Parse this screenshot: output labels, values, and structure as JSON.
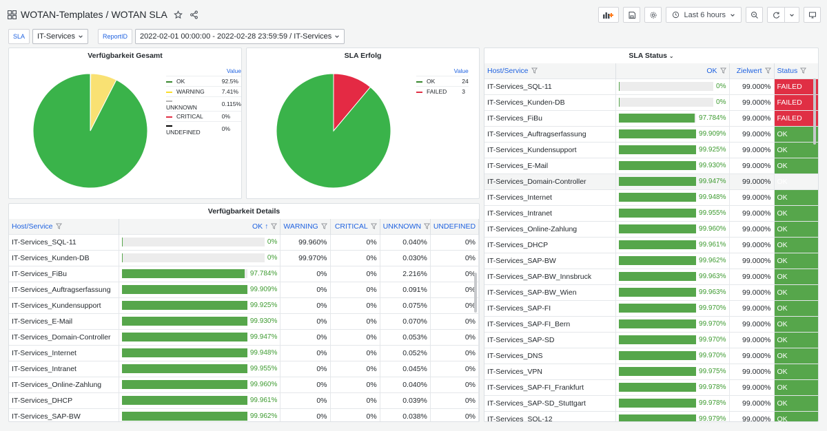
{
  "header": {
    "folder": "WOTAN-Templates",
    "separator": "/",
    "dashboard": "WOTAN SLA",
    "time_range": "Last 6 hours"
  },
  "variables": [
    {
      "label": "SLA",
      "value": "IT-Services"
    },
    {
      "label": "ReportID",
      "value": "2022-02-01 00:00:00 - 2022-02-28 23:59:59 / IT-Services"
    }
  ],
  "panels": {
    "availability_total": {
      "title": "Verfügbarkeit Gesamt",
      "legend_header": "Value",
      "legend": [
        {
          "name": "OK",
          "value": "92.5%",
          "color": "#37872d"
        },
        {
          "name": "WARNING",
          "value": "7.41%",
          "color": "#fade2a"
        },
        {
          "name": "UNKNOWN",
          "value": "0.115%",
          "color": "#b4b4b4"
        },
        {
          "name": "CRITICAL",
          "value": "0%",
          "color": "#e02f44"
        },
        {
          "name": "UNDEFINED",
          "value": "0%",
          "color": "#000000"
        }
      ]
    },
    "sla_success": {
      "title": "SLA Erfolg",
      "legend_header": "Value",
      "legend": [
        {
          "name": "OK",
          "value": "24",
          "color": "#37872d"
        },
        {
          "name": "FAILED",
          "value": "3",
          "color": "#e02f44"
        }
      ]
    },
    "sla_status": {
      "title": "SLA Status",
      "columns": [
        "Host/Service",
        "OK",
        "Zielwert",
        "Status"
      ],
      "rows": [
        {
          "host": "IT-Services_SQL-11",
          "ok": "0%",
          "pct": 0,
          "target": "99.000%",
          "status": "FAILED"
        },
        {
          "host": "IT-Services_Kunden-DB",
          "ok": "0%",
          "pct": 0,
          "target": "99.000%",
          "status": "FAILED"
        },
        {
          "host": "IT-Services_FiBu",
          "ok": "97.784%",
          "pct": 97.784,
          "target": "99.000%",
          "status": "FAILED"
        },
        {
          "host": "IT-Services_Auftragserfassung",
          "ok": "99.909%",
          "pct": 99.909,
          "target": "99.000%",
          "status": "OK"
        },
        {
          "host": "IT-Services_Kundensupport",
          "ok": "99.925%",
          "pct": 99.925,
          "target": "99.000%",
          "status": "OK"
        },
        {
          "host": "IT-Services_E-Mail",
          "ok": "99.930%",
          "pct": 99.93,
          "target": "99.000%",
          "status": "OK"
        },
        {
          "host": "IT-Services_Domain-Controller",
          "ok": "99.947%",
          "pct": 99.947,
          "target": "99.000%",
          "status": "OK"
        },
        {
          "host": "IT-Services_Internet",
          "ok": "99.948%",
          "pct": 99.948,
          "target": "99.000%",
          "status": "OK"
        },
        {
          "host": "IT-Services_Intranet",
          "ok": "99.955%",
          "pct": 99.955,
          "target": "99.000%",
          "status": "OK"
        },
        {
          "host": "IT-Services_Online-Zahlung",
          "ok": "99.960%",
          "pct": 99.96,
          "target": "99.000%",
          "status": "OK"
        },
        {
          "host": "IT-Services_DHCP",
          "ok": "99.961%",
          "pct": 99.961,
          "target": "99.000%",
          "status": "OK"
        },
        {
          "host": "IT-Services_SAP-BW",
          "ok": "99.962%",
          "pct": 99.962,
          "target": "99.000%",
          "status": "OK"
        },
        {
          "host": "IT-Services_SAP-BW_Innsbruck",
          "ok": "99.963%",
          "pct": 99.963,
          "target": "99.000%",
          "status": "OK"
        },
        {
          "host": "IT-Services_SAP-BW_Wien",
          "ok": "99.963%",
          "pct": 99.963,
          "target": "99.000%",
          "status": "OK"
        },
        {
          "host": "IT-Services_SAP-FI",
          "ok": "99.970%",
          "pct": 99.97,
          "target": "99.000%",
          "status": "OK"
        },
        {
          "host": "IT-Services_SAP-FI_Bern",
          "ok": "99.970%",
          "pct": 99.97,
          "target": "99.000%",
          "status": "OK"
        },
        {
          "host": "IT-Services_SAP-SD",
          "ok": "99.970%",
          "pct": 99.97,
          "target": "99.000%",
          "status": "OK"
        },
        {
          "host": "IT-Services_DNS",
          "ok": "99.970%",
          "pct": 99.97,
          "target": "99.000%",
          "status": "OK"
        },
        {
          "host": "IT-Services_VPN",
          "ok": "99.975%",
          "pct": 99.975,
          "target": "99.000%",
          "status": "OK"
        },
        {
          "host": "IT-Services_SAP-FI_Frankfurt",
          "ok": "99.978%",
          "pct": 99.978,
          "target": "99.000%",
          "status": "OK"
        },
        {
          "host": "IT-Services_SAP-SD_Stuttgart",
          "ok": "99.978%",
          "pct": 99.978,
          "target": "99.000%",
          "status": "OK"
        },
        {
          "host": "IT-Services_SQL-12",
          "ok": "99.979%",
          "pct": 99.979,
          "target": "99.000%",
          "status": "OK"
        }
      ]
    },
    "availability_details": {
      "title": "Verfügbarkeit Details",
      "columns": [
        "Host/Service",
        "OK",
        "WARNING",
        "CRITICAL",
        "UNKNOWN",
        "UNDEFINED"
      ],
      "rows": [
        {
          "host": "IT-Services_SQL-11",
          "ok": "0%",
          "pct": 0,
          "warning": "99.960%",
          "critical": "0%",
          "unknown": "0.040%",
          "undefined": "0%"
        },
        {
          "host": "IT-Services_Kunden-DB",
          "ok": "0%",
          "pct": 0,
          "warning": "99.970%",
          "critical": "0%",
          "unknown": "0.030%",
          "undefined": "0%"
        },
        {
          "host": "IT-Services_FiBu",
          "ok": "97.784%",
          "pct": 97.784,
          "warning": "0%",
          "critical": "0%",
          "unknown": "2.216%",
          "undefined": "0%"
        },
        {
          "host": "IT-Services_Auftragserfassung",
          "ok": "99.909%",
          "pct": 99.909,
          "warning": "0%",
          "critical": "0%",
          "unknown": "0.091%",
          "undefined": "0%"
        },
        {
          "host": "IT-Services_Kundensupport",
          "ok": "99.925%",
          "pct": 99.925,
          "warning": "0%",
          "critical": "0%",
          "unknown": "0.075%",
          "undefined": "0%"
        },
        {
          "host": "IT-Services_E-Mail",
          "ok": "99.930%",
          "pct": 99.93,
          "warning": "0%",
          "critical": "0%",
          "unknown": "0.070%",
          "undefined": "0%"
        },
        {
          "host": "IT-Services_Domain-Controller",
          "ok": "99.947%",
          "pct": 99.947,
          "warning": "0%",
          "critical": "0%",
          "unknown": "0.053%",
          "undefined": "0%"
        },
        {
          "host": "IT-Services_Internet",
          "ok": "99.948%",
          "pct": 99.948,
          "warning": "0%",
          "critical": "0%",
          "unknown": "0.052%",
          "undefined": "0%"
        },
        {
          "host": "IT-Services_Intranet",
          "ok": "99.955%",
          "pct": 99.955,
          "warning": "0%",
          "critical": "0%",
          "unknown": "0.045%",
          "undefined": "0%"
        },
        {
          "host": "IT-Services_Online-Zahlung",
          "ok": "99.960%",
          "pct": 99.96,
          "warning": "0%",
          "critical": "0%",
          "unknown": "0.040%",
          "undefined": "0%"
        },
        {
          "host": "IT-Services_DHCP",
          "ok": "99.961%",
          "pct": 99.961,
          "warning": "0%",
          "critical": "0%",
          "unknown": "0.039%",
          "undefined": "0%"
        },
        {
          "host": "IT-Services_SAP-BW",
          "ok": "99.962%",
          "pct": 99.962,
          "warning": "0%",
          "critical": "0%",
          "unknown": "0.038%",
          "undefined": "0%"
        }
      ]
    }
  },
  "chart_data": [
    {
      "type": "pie",
      "title": "Verfügbarkeit Gesamt",
      "categories": [
        "OK",
        "WARNING",
        "UNKNOWN",
        "CRITICAL",
        "UNDEFINED"
      ],
      "values": [
        92.5,
        7.41,
        0.115,
        0,
        0
      ],
      "colors": [
        "#37872d",
        "#fade2a",
        "#b4b4b4",
        "#e02f44",
        "#000000"
      ],
      "legend": "right"
    },
    {
      "type": "pie",
      "title": "SLA Erfolg",
      "categories": [
        "OK",
        "FAILED"
      ],
      "values": [
        24,
        3
      ],
      "colors": [
        "#37872d",
        "#e02f44"
      ],
      "legend": "right"
    }
  ]
}
